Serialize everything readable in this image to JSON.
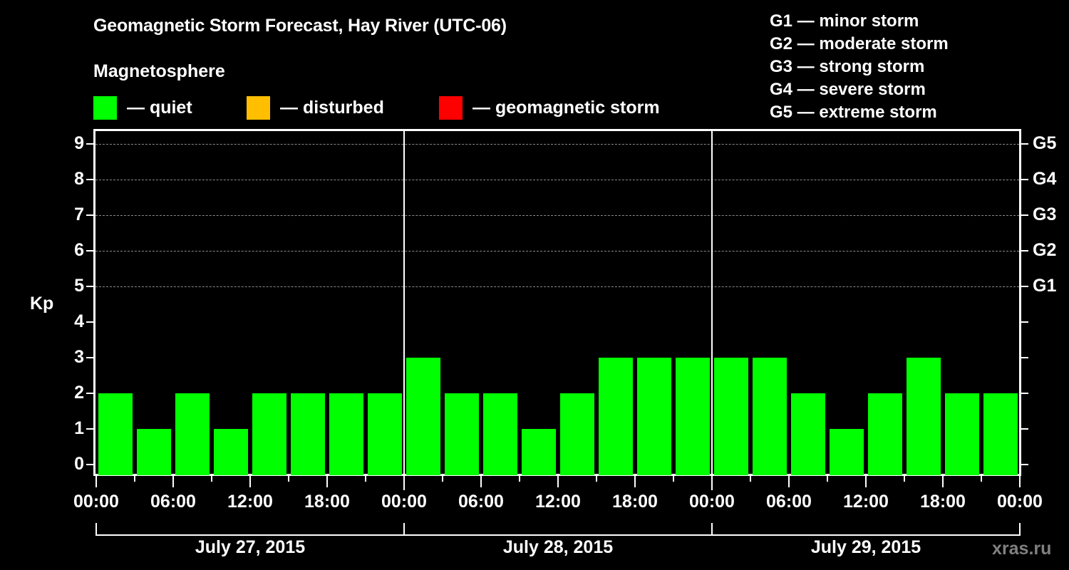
{
  "header": {
    "title": "Geomagnetic Storm Forecast, Hay River (UTC-06)",
    "subtitle": "Magnetosphere"
  },
  "legend": [
    {
      "label": "— quiet",
      "color": "#00ff00"
    },
    {
      "label": "— disturbed",
      "color": "#ffbf00"
    },
    {
      "label": "— geomagnetic storm",
      "color": "#ff0000"
    }
  ],
  "storm_scale": [
    "G1 — minor storm",
    "G2 — moderate storm",
    "G3 — strong storm",
    "G4 — severe storm",
    "G5 — extreme storm"
  ],
  "axes": {
    "ylabel": "Kp",
    "yticks": [
      "0",
      "1",
      "2",
      "3",
      "4",
      "5",
      "6",
      "7",
      "8",
      "9"
    ],
    "right_labels": [
      {
        "kp": 5,
        "label": "G1"
      },
      {
        "kp": 6,
        "label": "G2"
      },
      {
        "kp": 7,
        "label": "G3"
      },
      {
        "kp": 8,
        "label": "G4"
      },
      {
        "kp": 9,
        "label": "G5"
      }
    ],
    "xticks": [
      "00:00",
      "06:00",
      "12:00",
      "18:00",
      "00:00",
      "06:00",
      "12:00",
      "18:00",
      "00:00",
      "06:00",
      "12:00",
      "18:00",
      "00:00"
    ],
    "dates": [
      "July 27, 2015",
      "July 28, 2015",
      "July 29, 2015"
    ]
  },
  "watermark": "xras.ru",
  "chart_data": {
    "type": "bar",
    "title": "Geomagnetic Storm Forecast, Hay River (UTC-06)",
    "subtitle": "Magnetosphere",
    "xlabel": "",
    "ylabel": "Kp",
    "ylim": [
      0,
      9
    ],
    "grid": "dashed horizontal at Kp 5–9",
    "interval_hours": 3,
    "categories": [
      "Jul 27 00-03",
      "Jul 27 03-06",
      "Jul 27 06-09",
      "Jul 27 09-12",
      "Jul 27 12-15",
      "Jul 27 15-18",
      "Jul 27 18-21",
      "Jul 27 21-24",
      "Jul 28 00-03",
      "Jul 28 03-06",
      "Jul 28 06-09",
      "Jul 28 09-12",
      "Jul 28 12-15",
      "Jul 28 15-18",
      "Jul 28 18-21",
      "Jul 28 21-24",
      "Jul 29 00-03",
      "Jul 29 03-06",
      "Jul 29 06-09",
      "Jul 29 09-12",
      "Jul 29 12-15",
      "Jul 29 15-18",
      "Jul 29 18-21",
      "Jul 29 21-24"
    ],
    "values": [
      2,
      1,
      2,
      1,
      2,
      2,
      2,
      2,
      3,
      2,
      2,
      1,
      2,
      3,
      3,
      3,
      3,
      3,
      2,
      1,
      2,
      3,
      2,
      2
    ],
    "status": "quiet",
    "legend": [
      "quiet",
      "disturbed",
      "geomagnetic storm"
    ],
    "right_axis": {
      "5": "G1",
      "6": "G2",
      "7": "G3",
      "8": "G4",
      "9": "G5"
    }
  }
}
